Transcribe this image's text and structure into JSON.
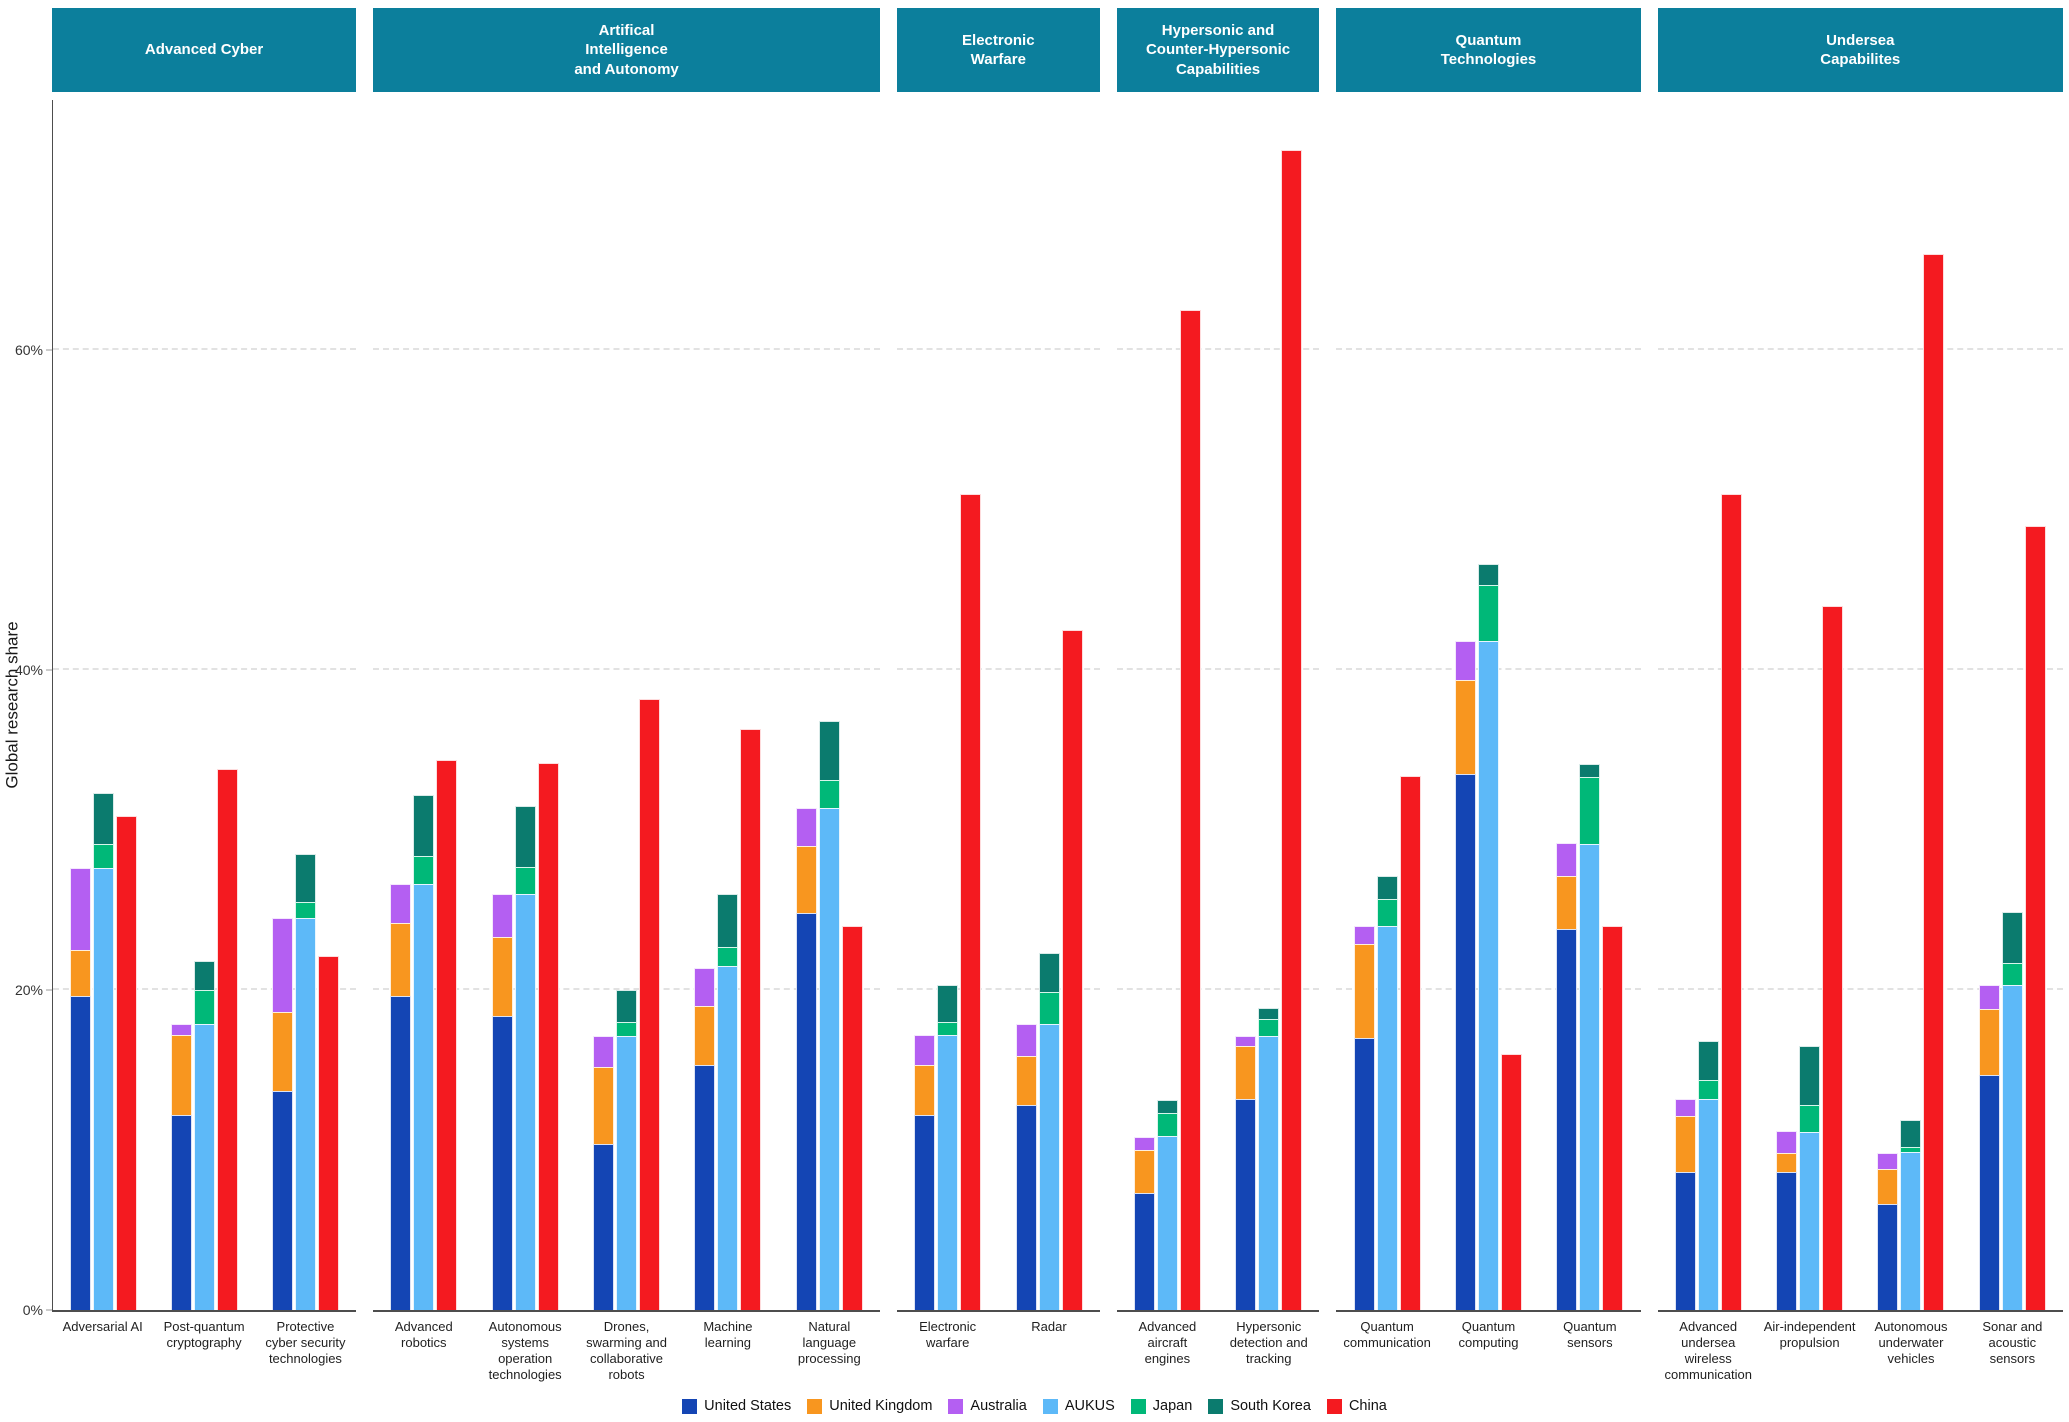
{
  "y_axis": {
    "label": "Global research share",
    "ticks": [
      "0%",
      "20%",
      "40%",
      "60%"
    ],
    "tick_values": [
      0,
      20,
      40,
      60
    ],
    "max_value": 75.6,
    "grid_values": [
      20,
      40,
      60
    ]
  },
  "colors": {
    "header_bg": "#0c7f9c",
    "axis_line": "#4d4d4d",
    "gridline": "#e2e2e2"
  },
  "legend": {
    "items": [
      {
        "key": "us",
        "label": "United States",
        "color": "#1445b4"
      },
      {
        "key": "uk",
        "label": "United Kingdom",
        "color": "#f8961f"
      },
      {
        "key": "aus",
        "label": "Australia",
        "color": "#b45ff2"
      },
      {
        "key": "aukus",
        "label": "AUKUS",
        "color": "#5db9f8"
      },
      {
        "key": "japan",
        "label": "Japan",
        "color": "#00b878"
      },
      {
        "key": "skorea",
        "label": "South Korea",
        "color": "#0b7b6e"
      },
      {
        "key": "china",
        "label": "China",
        "color": "#f41a20"
      }
    ]
  },
  "chart_data": {
    "type": "bar",
    "title": "",
    "xlabel": "",
    "ylabel": "Global research share",
    "ylim": [
      0,
      75.6
    ],
    "grid": true,
    "legend_position": "bottom",
    "unit": "percent",
    "bar_composition": [
      [
        "us",
        "uk",
        "aus"
      ],
      [
        "aukus",
        "japan",
        "skorea"
      ],
      [
        "china"
      ]
    ],
    "panels": [
      {
        "title": "Advanced Cyber",
        "categories": [
          {
            "label": "Adversarial AI",
            "values": {
              "us": 19.6,
              "uk": 2.9,
              "aus": 5.1,
              "aukus": 27.6,
              "japan": 1.5,
              "skorea": 3.2,
              "china": 30.9
            }
          },
          {
            "label": "Post-quantum\ncryptography",
            "values": {
              "us": 12.2,
              "uk": 5.0,
              "aus": 0.7,
              "aukus": 17.9,
              "japan": 2.1,
              "skorea": 1.8,
              "china": 33.8
            }
          },
          {
            "label": "Protective\ncyber security\ntechnologies",
            "values": {
              "us": 13.7,
              "uk": 4.9,
              "aus": 5.9,
              "aukus": 24.5,
              "japan": 1.0,
              "skorea": 3.0,
              "china": 22.1
            }
          }
        ]
      },
      {
        "title": "Artifical\nIntelligence\nand Autonomy",
        "categories": [
          {
            "label": "Advanced\nrobotics",
            "values": {
              "us": 19.6,
              "uk": 4.6,
              "aus": 2.4,
              "aukus": 26.6,
              "japan": 1.8,
              "skorea": 3.8,
              "china": 34.4
            }
          },
          {
            "label": "Autonomous\nsystems\noperation\ntechnologies",
            "values": {
              "us": 18.4,
              "uk": 4.9,
              "aus": 2.7,
              "aukus": 26.0,
              "japan": 1.7,
              "skorea": 3.8,
              "china": 34.2
            }
          },
          {
            "label": "Drones,\nswarming and\ncollaborative\nrobots",
            "values": {
              "us": 10.4,
              "uk": 4.8,
              "aus": 1.9,
              "aukus": 17.1,
              "japan": 0.9,
              "skorea": 2.0,
              "china": 38.2
            }
          },
          {
            "label": "Machine\nlearning",
            "values": {
              "us": 15.3,
              "uk": 3.7,
              "aus": 2.4,
              "aukus": 21.5,
              "japan": 1.2,
              "skorea": 3.3,
              "china": 36.3
            }
          },
          {
            "label": "Natural\nlanguage\nprocessing",
            "values": {
              "us": 24.8,
              "uk": 4.2,
              "aus": 2.4,
              "aukus": 31.4,
              "japan": 1.7,
              "skorea": 3.7,
              "china": 24.0
            }
          }
        ]
      },
      {
        "title": "Electronic\nWarfare",
        "categories": [
          {
            "label": "Electronic\nwarfare",
            "values": {
              "us": 12.2,
              "uk": 3.1,
              "aus": 1.9,
              "aukus": 17.2,
              "japan": 0.8,
              "skorea": 2.3,
              "china": 51.0
            }
          },
          {
            "label": "Radar",
            "values": {
              "us": 12.8,
              "uk": 3.1,
              "aus": 2.0,
              "aukus": 17.9,
              "japan": 2.0,
              "skorea": 2.4,
              "china": 42.5
            }
          }
        ]
      },
      {
        "title": "Hypersonic and\nCounter-Hypersonic\nCapabilities",
        "categories": [
          {
            "label": "Advanced\naircraft\nengines",
            "values": {
              "us": 7.3,
              "uk": 2.7,
              "aus": 0.8,
              "aukus": 10.9,
              "japan": 1.4,
              "skorea": 0.8,
              "china": 62.5
            }
          },
          {
            "label": "Hypersonic\ndetection and\ntracking",
            "values": {
              "us": 13.2,
              "uk": 3.3,
              "aus": 0.6,
              "aukus": 17.1,
              "japan": 1.1,
              "skorea": 0.7,
              "china": 72.5
            }
          }
        ]
      },
      {
        "title": "Quantum\nTechnologies",
        "categories": [
          {
            "label": "Quantum\ncommunication",
            "values": {
              "us": 17.0,
              "uk": 5.9,
              "aus": 1.1,
              "aukus": 24.0,
              "japan": 1.7,
              "skorea": 1.4,
              "china": 33.4
            }
          },
          {
            "label": "Quantum\ncomputing",
            "values": {
              "us": 33.5,
              "uk": 5.9,
              "aus": 2.4,
              "aukus": 41.8,
              "japan": 3.5,
              "skorea": 1.3,
              "china": 16.0
            }
          },
          {
            "label": "Quantum sensors",
            "values": {
              "us": 23.8,
              "uk": 3.3,
              "aus": 2.1,
              "aukus": 29.1,
              "japan": 4.2,
              "skorea": 0.8,
              "china": 24.0
            }
          }
        ]
      },
      {
        "title": "Undersea\nCapabilites",
        "categories": [
          {
            "label": "Advanced\nundersea\nwireless\ncommunication",
            "values": {
              "us": 8.6,
              "uk": 3.5,
              "aus": 1.1,
              "aukus": 13.2,
              "japan": 1.2,
              "skorea": 2.4,
              "china": 51.0
            }
          },
          {
            "label": "Air-independent\npropulsion",
            "values": {
              "us": 8.6,
              "uk": 1.2,
              "aus": 1.4,
              "aukus": 11.1,
              "japan": 1.7,
              "skorea": 3.7,
              "china": 44.0
            }
          },
          {
            "label": "Autonomous\nunderwater\nvehicles",
            "values": {
              "us": 6.6,
              "uk": 2.2,
              "aus": 1.0,
              "aukus": 9.9,
              "japan": 0.3,
              "skorea": 1.7,
              "china": 66.0
            }
          },
          {
            "label": "Sonar and\nacoustic\nsensors",
            "values": {
              "us": 14.7,
              "uk": 4.1,
              "aus": 1.5,
              "aukus": 20.3,
              "japan": 1.4,
              "skorea": 3.2,
              "china": 49.0
            }
          }
        ]
      }
    ]
  }
}
